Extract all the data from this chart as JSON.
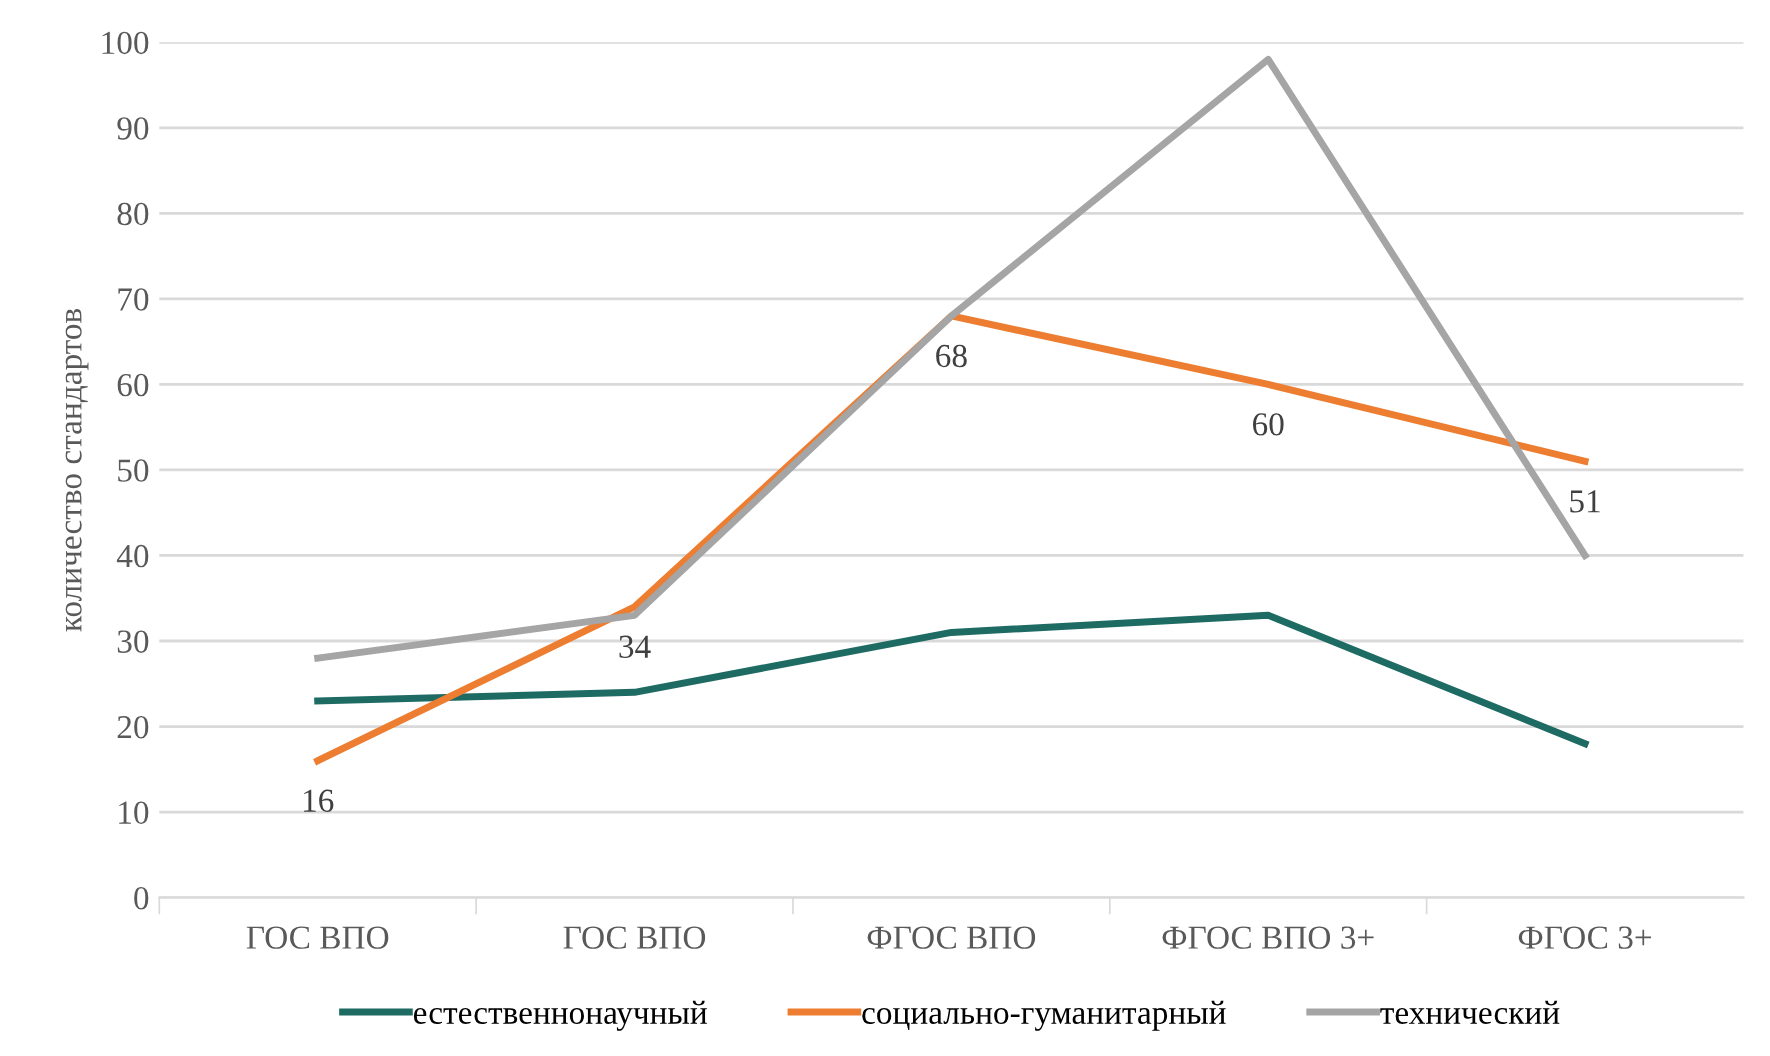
{
  "chart_data": {
    "type": "line",
    "ylabel": "количество стандартов",
    "categories": [
      "ГОС ВПО",
      "ГОС ВПО",
      "ФГОС ВПО",
      "ФГОС ВПО 3+",
      "ФГОС 3+"
    ],
    "series": [
      {
        "name": "естественнонаучный",
        "color": "#1e6b63",
        "values": [
          23,
          24,
          31,
          33,
          18
        ]
      },
      {
        "name": "социально-гуманитарный",
        "color": "#ed7d31",
        "values": [
          16,
          34,
          68,
          60,
          51
        ],
        "value_labels": [
          "16",
          "34",
          "68",
          "60",
          "51"
        ]
      },
      {
        "name": "технический",
        "color": "#a5a5a5",
        "values": [
          28,
          33,
          68,
          98,
          40
        ]
      }
    ],
    "ylim": [
      0,
      100
    ],
    "yticks": [
      0,
      10,
      20,
      30,
      40,
      50,
      60,
      70,
      80,
      90,
      100
    ],
    "grid": "y",
    "legend": "bottom",
    "marker": "none",
    "line_style": "solid"
  }
}
